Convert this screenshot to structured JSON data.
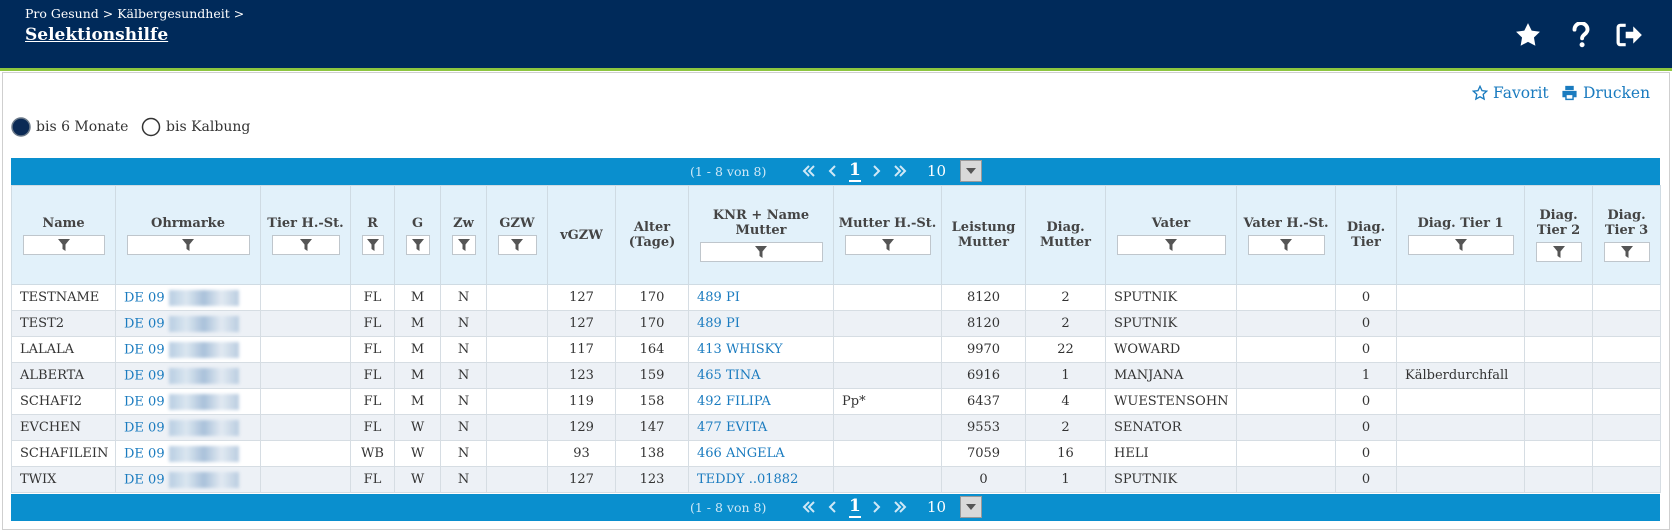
{
  "header": {
    "breadcrumb": "Pro Gesund > Kälbergesundheit >",
    "title": "Selektionshilfe"
  },
  "actions": [
    "Favorit",
    "Drucken"
  ],
  "filters": [
    {
      "label": "bis 6 Monate",
      "selected": true
    },
    {
      "label": "bis Kalbung",
      "selected": false
    }
  ],
  "pagination": {
    "range": "(1 - 8 von 8)",
    "page": 1,
    "page_size": 10
  },
  "table": {
    "columns": [
      {
        "label": "Name",
        "filter": true
      },
      {
        "label": "Ohrmarke",
        "filter": true
      },
      {
        "label": "Tier H.-St.",
        "filter": true
      },
      {
        "label": "R",
        "filter": true
      },
      {
        "label": "G",
        "filter": true
      },
      {
        "label": "Zw",
        "filter": true
      },
      {
        "label": "GZW",
        "filter": true
      },
      {
        "label": "vGZW",
        "filter": false
      },
      {
        "label": "Alter (Tage)",
        "filter": false
      },
      {
        "label": "KNR + Name Mutter",
        "filter": true
      },
      {
        "label": "Mutter H.-St.",
        "filter": true
      },
      {
        "label": "Leistung Mutter",
        "filter": false
      },
      {
        "label": "Diag. Mutter",
        "filter": false
      },
      {
        "label": "Vater",
        "filter": true
      },
      {
        "label": "Vater H.-St.",
        "filter": true
      },
      {
        "label": "Diag. Tier",
        "filter": false
      },
      {
        "label": "Diag. Tier 1",
        "filter": true
      },
      {
        "label": "Diag. Tier 2",
        "filter": true
      },
      {
        "label": "Diag. Tier 3",
        "filter": true
      }
    ],
    "rows": [
      [
        "TESTNAME",
        "DE 09",
        null,
        "FL",
        "M",
        "N",
        null,
        127,
        170,
        "489 PI",
        null,
        8120,
        2,
        "SPUTNIK",
        null,
        0,
        null,
        null,
        null
      ],
      [
        "TEST2",
        "DE 09",
        null,
        "FL",
        "M",
        "N",
        null,
        127,
        170,
        "489 PI",
        null,
        8120,
        2,
        "SPUTNIK",
        null,
        0,
        null,
        null,
        null
      ],
      [
        "LALALA",
        "DE 09",
        null,
        "FL",
        "M",
        "N",
        null,
        117,
        164,
        "413 WHISKY",
        null,
        9970,
        22,
        "WOWARD",
        null,
        0,
        null,
        null,
        null
      ],
      [
        "ALBERTA",
        "DE 09",
        null,
        "FL",
        "M",
        "N",
        null,
        123,
        159,
        "465 TINA",
        null,
        6916,
        1,
        "MANJANA",
        null,
        1,
        "Kälberdurchfall",
        null,
        null
      ],
      [
        "SCHAFI2",
        "DE 09",
        null,
        "FL",
        "M",
        "N",
        null,
        119,
        158,
        "492 FILIPA",
        "Pp*",
        6437,
        4,
        "WUESTENSOHN",
        null,
        0,
        null,
        null,
        null
      ],
      [
        "EVCHEN",
        "DE 09",
        null,
        "FL",
        "W",
        "N",
        null,
        129,
        147,
        "477 EVITA",
        null,
        9553,
        2,
        "SENATOR",
        null,
        0,
        null,
        null,
        null
      ],
      [
        "SCHAFILEIN",
        "DE 09",
        null,
        "WB",
        "W",
        "N",
        null,
        93,
        138,
        "466 ANGELA",
        null,
        7059,
        16,
        "HELI",
        null,
        0,
        null,
        null,
        null
      ],
      [
        "TWIX",
        "DE 09",
        null,
        "FL",
        "W",
        "N",
        null,
        127,
        123,
        "TEDDY ..01882",
        null,
        0,
        1,
        "SPUTNIK",
        null,
        0,
        null,
        null,
        null
      ]
    ]
  }
}
